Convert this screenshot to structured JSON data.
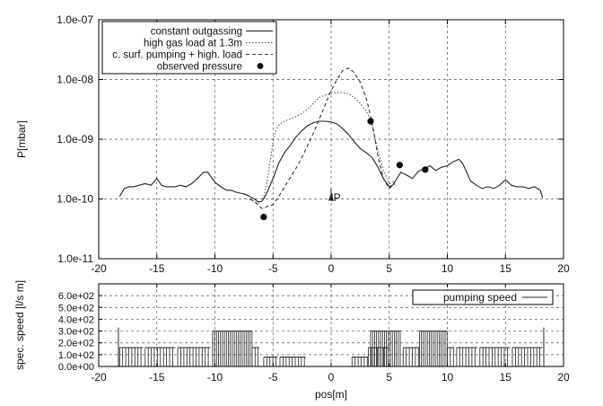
{
  "chart_data": [
    {
      "type": "line",
      "ylabel": "P[mbar]",
      "xlabel": "",
      "xlim": [
        -20,
        20
      ],
      "ylim": [
        1e-11,
        1e-07
      ],
      "yscale": "log",
      "grid": true,
      "legend_position": "top-left",
      "xticks": [
        -20,
        -15,
        -10,
        -5,
        0,
        5,
        10,
        15,
        20
      ],
      "xtick_labels": [
        "-20",
        "-15",
        "-10",
        "-5",
        "0",
        "5",
        "10",
        "15",
        "20"
      ],
      "yticks": [
        1e-11,
        1e-10,
        1e-09,
        1e-08,
        1e-07
      ],
      "ytick_labels": [
        "1.0e-11",
        "1.0e-10",
        "1.0e-09",
        "1.0e-08",
        "1.0e-07"
      ],
      "annotation": {
        "text": "IP",
        "x": 0,
        "y": 1.5e-10
      },
      "series": [
        {
          "name": "constant outgassing",
          "style": "solid",
          "color": "#222222",
          "x": [
            -18.2,
            -17.8,
            -17.4,
            -17,
            -16.5,
            -16,
            -15.5,
            -15,
            -14.6,
            -14.2,
            -13.8,
            -13.4,
            -13,
            -12.5,
            -12,
            -11.5,
            -11,
            -10.6,
            -10.3,
            -10,
            -9.5,
            -9,
            -8.6,
            -8.2,
            -7.8,
            -7.4,
            -7,
            -6.6,
            -6.3,
            -6,
            -5.8,
            -5.5,
            -5,
            -4.5,
            -4,
            -3.5,
            -3,
            -2.5,
            -2,
            -1.5,
            -1,
            -0.5,
            0,
            0.5,
            1,
            1.5,
            2,
            2.5,
            3,
            3.5,
            4,
            4.5,
            5,
            5.3,
            5.6,
            6,
            6.5,
            7,
            7.5,
            8,
            8.5,
            9,
            9.5,
            10,
            10.5,
            11,
            11.3,
            11.6,
            12,
            12.5,
            13,
            13.5,
            14,
            14.5,
            15,
            15.5,
            16,
            16.5,
            17,
            17.5,
            18,
            18.2
          ],
          "values": [
            1.1e-10,
            1.5e-10,
            1.6e-10,
            1.6e-10,
            1.7e-10,
            1.8e-10,
            1.7e-10,
            2.2e-10,
            1.7e-10,
            1.6e-10,
            1.6e-10,
            1.6e-10,
            1.7e-10,
            1.6e-10,
            1.8e-10,
            2.2e-10,
            2.8e-10,
            2.8e-10,
            2.3e-10,
            1.9e-10,
            1.6e-10,
            1.4e-10,
            1.4e-10,
            1.3e-10,
            1.25e-10,
            1.2e-10,
            1.1e-10,
            1e-10,
            9e-11,
            9e-11,
            1e-10,
            1.3e-10,
            2.2e-10,
            4e-10,
            6e-10,
            8e-10,
            1.1e-09,
            1.4e-09,
            1.7e-09,
            1.9e-09,
            2e-09,
            2e-09,
            1.95e-09,
            1.8e-09,
            1.5e-09,
            1.2e-09,
            9e-10,
            7e-10,
            6e-10,
            5e-10,
            3.5e-10,
            2.2e-10,
            1.6e-10,
            1.7e-10,
            2.1e-10,
            2.8e-10,
            2.5e-10,
            2.2e-10,
            2.9e-10,
            3.2e-10,
            3.6e-10,
            3e-10,
            3.4e-10,
            3.6e-10,
            4.2e-10,
            4.6e-10,
            4e-10,
            3e-10,
            2e-10,
            1.7e-10,
            1.5e-10,
            1.6e-10,
            1.5e-10,
            1.7e-10,
            2.1e-10,
            1.7e-10,
            1.6e-10,
            1.6e-10,
            1.5e-10,
            1.6e-10,
            1.4e-10,
            1.05e-10
          ]
        },
        {
          "name": "high gas load at 1.3m",
          "style": "dotted",
          "color": "#555555",
          "x": [
            -7,
            -6.6,
            -6.3,
            -6,
            -5.8,
            -5.5,
            -5.2,
            -5,
            -4.7,
            -4.4,
            -4,
            -3.5,
            -3,
            -2.5,
            -2,
            -1.5,
            -1,
            -0.5,
            0,
            0.5,
            1,
            1.5,
            2,
            2.5,
            3,
            3.3,
            3.6,
            4,
            4.5,
            5,
            5.5
          ],
          "values": [
            1e-10,
            9e-11,
            8.5e-11,
            9e-11,
            1.1e-10,
            2e-10,
            5e-10,
            9e-10,
            1.5e-09,
            1.8e-09,
            2e-09,
            2.2e-09,
            2.4e-09,
            2.7e-09,
            3.2e-09,
            4e-09,
            5e-09,
            5.5e-09,
            5.8e-09,
            6e-09,
            6e-09,
            5.8e-09,
            5e-09,
            4e-09,
            3e-09,
            2.3e-09,
            1.5e-09,
            7e-10,
            3e-10,
            1.8e-10,
            2e-10
          ]
        },
        {
          "name": "c. surf. pumping + high. load",
          "style": "dashed",
          "color": "#333333",
          "x": [
            -7,
            -6.6,
            -6.3,
            -6,
            -5.8,
            -5.5,
            -5,
            -4.5,
            -4,
            -3.5,
            -3,
            -2.5,
            -2,
            -1.5,
            -1,
            -0.5,
            0,
            0.5,
            1,
            1.5,
            2,
            2.5,
            3,
            3.3,
            3.6,
            4,
            4.5,
            5,
            5.5
          ],
          "values": [
            1e-10,
            9e-11,
            8e-11,
            7e-11,
            7e-11,
            7.5e-11,
            8e-11,
            1.1e-10,
            1.6e-10,
            2.3e-10,
            3.3e-10,
            5e-10,
            8e-10,
            1.3e-09,
            2.2e-09,
            3.8e-09,
            6.5e-09,
            1e-08,
            1.4e-08,
            1.55e-08,
            1.3e-08,
            9e-09,
            5e-09,
            3e-09,
            1.6e-09,
            5.5e-10,
            2.2e-10,
            1.5e-10,
            1.8e-10
          ]
        },
        {
          "name": "observed pressure",
          "style": "points",
          "color": "#000000",
          "x": [
            -5.8,
            3.4,
            5.9,
            8.1
          ],
          "values": [
            5e-11,
            2e-09,
            3.7e-10,
            3.1e-10
          ]
        }
      ]
    },
    {
      "type": "bar",
      "xlabel": "pos[m]",
      "ylabel": "spec. speed [l/s m]",
      "xlim": [
        -20,
        20
      ],
      "ylim": [
        0,
        700
      ],
      "grid": true,
      "legend_position": "top-right",
      "xticks": [
        -20,
        -15,
        -10,
        -5,
        0,
        5,
        10,
        15,
        20
      ],
      "xtick_labels": [
        "-20",
        "-15",
        "-10",
        "-5",
        "0",
        "5",
        "10",
        "15",
        "20"
      ],
      "yticks": [
        0,
        100,
        200,
        300,
        400,
        500,
        600
      ],
      "ytick_labels": [
        "0.0e+00",
        "1.0e+02",
        "2.0e+02",
        "3.0e+02",
        "4.0e+02",
        "5.0e+02",
        "6.0e+02"
      ],
      "series": [
        {
          "name": "pumping speed",
          "style": "solid",
          "color": "#222222",
          "segments": [
            {
              "x0": -18.2,
              "x1": -16.2,
              "value": 160
            },
            {
              "x0": -16.0,
              "x1": -13.4,
              "value": 160
            },
            {
              "x0": -13.2,
              "x1": -10.4,
              "value": 160
            },
            {
              "x0": -10.2,
              "x1": -6.8,
              "value": 300
            },
            {
              "x0": -6.8,
              "x1": -6.2,
              "value": 160
            },
            {
              "x0": -5.8,
              "x1": -4.6,
              "value": 80
            },
            {
              "x0": -4.4,
              "x1": -2.2,
              "value": 80
            },
            {
              "x0": 1.8,
              "x1": 3.2,
              "value": 80
            },
            {
              "x0": 3.2,
              "x1": 5.0,
              "value": 160
            },
            {
              "x0": 3.4,
              "x1": 6.0,
              "value": 300
            },
            {
              "x0": 6.2,
              "x1": 7.6,
              "value": 160
            },
            {
              "x0": 7.6,
              "x1": 10.0,
              "value": 300
            },
            {
              "x0": 10.0,
              "x1": 10.6,
              "value": 160
            },
            {
              "x0": 10.8,
              "x1": 12.6,
              "value": 160
            },
            {
              "x0": 12.8,
              "x1": 15.4,
              "value": 160
            },
            {
              "x0": 15.6,
              "x1": 18.2,
              "value": 160
            }
          ],
          "spikes": [
            {
              "x": -18.3,
              "value": 330
            },
            {
              "x": 18.3,
              "value": 330
            }
          ]
        }
      ]
    }
  ]
}
